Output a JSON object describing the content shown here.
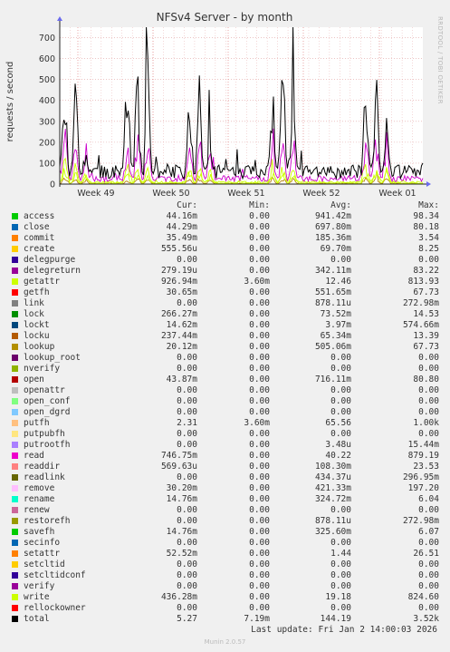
{
  "chart_data": {
    "type": "line",
    "title": "NFSv4 Server - by month",
    "ylabel": "requests / second",
    "ylim": [
      0,
      750
    ],
    "yticks": [
      0,
      100,
      200,
      300,
      400,
      500,
      600,
      700
    ],
    "xticks": [
      "Week 49",
      "Week 50",
      "Week 51",
      "Week 52",
      "Week 01"
    ],
    "grid": true,
    "legend_position": "below",
    "side_label": "RRDTOOL / TOBI OETIKER",
    "series": [
      {
        "name": "total",
        "color": "#000000",
        "peaks": [
          580,
          600,
          200,
          620,
          610,
          660,
          575,
          600,
          300,
          640,
          640,
          540,
          750,
          615,
          580
        ],
        "baseline": 130
      },
      {
        "name": "read",
        "color": "#cc00cc",
        "peaks": [
          310,
          260,
          150,
          250,
          300,
          240,
          250,
          270,
          200,
          240,
          250,
          260,
          320,
          280,
          300
        ],
        "baseline": 60
      },
      {
        "name": "getattr",
        "color": "#ccff00",
        "peaks": [
          140,
          100,
          70,
          120,
          110,
          95,
          100,
          110,
          80,
          100,
          100,
          95,
          120,
          110,
          100
        ],
        "baseline": 20
      },
      {
        "name": "write",
        "color": "#ccff00",
        "peaks": [
          100,
          70,
          50,
          80,
          70,
          60,
          75,
          80,
          55,
          70,
          80,
          70,
          90,
          80,
          75
        ],
        "baseline": 10
      },
      {
        "name": "lookup",
        "color": "#b8860b",
        "peaks": [
          40,
          35,
          25,
          30,
          35,
          30,
          35,
          40,
          25,
          35,
          40,
          30,
          45,
          40,
          35
        ],
        "baseline": 5
      }
    ]
  },
  "legend": {
    "headers": {
      "cur": "Cur:",
      "min": "Min:",
      "avg": "Avg:",
      "max": "Max:"
    },
    "rows": [
      {
        "name": "access",
        "color": "#00cc00",
        "cur": "44.16m",
        "min": "0.00",
        "avg": "941.42m",
        "max": "98.34"
      },
      {
        "name": "close",
        "color": "#0066b3",
        "cur": "44.29m",
        "min": "0.00",
        "avg": "697.80m",
        "max": "80.18"
      },
      {
        "name": "commit",
        "color": "#ff8000",
        "cur": "35.49m",
        "min": "0.00",
        "avg": "185.36m",
        "max": "3.54"
      },
      {
        "name": "create",
        "color": "#ffcc00",
        "cur": "555.56u",
        "min": "0.00",
        "avg": "69.70m",
        "max": "8.25"
      },
      {
        "name": "delegpurge",
        "color": "#330099",
        "cur": "0.00",
        "min": "0.00",
        "avg": "0.00",
        "max": "0.00"
      },
      {
        "name": "delegreturn",
        "color": "#990099",
        "cur": "279.19u",
        "min": "0.00",
        "avg": "342.11m",
        "max": "83.22"
      },
      {
        "name": "getattr",
        "color": "#ccff00",
        "cur": "926.94m",
        "min": "3.60m",
        "avg": "12.46",
        "max": "813.93"
      },
      {
        "name": "getfh",
        "color": "#ff0000",
        "cur": "30.65m",
        "min": "0.00",
        "avg": "551.65m",
        "max": "67.73"
      },
      {
        "name": "link",
        "color": "#808080",
        "cur": "0.00",
        "min": "0.00",
        "avg": "878.11u",
        "max": "272.98m"
      },
      {
        "name": "lock",
        "color": "#008f00",
        "cur": "266.27m",
        "min": "0.00",
        "avg": "73.52m",
        "max": "14.53"
      },
      {
        "name": "lockt",
        "color": "#00487d",
        "cur": "14.62m",
        "min": "0.00",
        "avg": "3.97m",
        "max": "574.66m"
      },
      {
        "name": "locku",
        "color": "#b35a00",
        "cur": "237.44m",
        "min": "0.00",
        "avg": "65.34m",
        "max": "13.39"
      },
      {
        "name": "lookup",
        "color": "#b38f00",
        "cur": "20.12m",
        "min": "0.00",
        "avg": "505.06m",
        "max": "67.73"
      },
      {
        "name": "lookup_root",
        "color": "#6b006b",
        "cur": "0.00",
        "min": "0.00",
        "avg": "0.00",
        "max": "0.00"
      },
      {
        "name": "nverify",
        "color": "#8fb300",
        "cur": "0.00",
        "min": "0.00",
        "avg": "0.00",
        "max": "0.00"
      },
      {
        "name": "open",
        "color": "#b30000",
        "cur": "43.87m",
        "min": "0.00",
        "avg": "716.11m",
        "max": "80.80"
      },
      {
        "name": "openattr",
        "color": "#bebebe",
        "cur": "0.00",
        "min": "0.00",
        "avg": "0.00",
        "max": "0.00"
      },
      {
        "name": "open_conf",
        "color": "#80ff80",
        "cur": "0.00",
        "min": "0.00",
        "avg": "0.00",
        "max": "0.00"
      },
      {
        "name": "open_dgrd",
        "color": "#80c9ff",
        "cur": "0.00",
        "min": "0.00",
        "avg": "0.00",
        "max": "0.00"
      },
      {
        "name": "putfh",
        "color": "#ffc080",
        "cur": "2.31",
        "min": "3.60m",
        "avg": "65.56",
        "max": "1.00k"
      },
      {
        "name": "putpubfh",
        "color": "#ffe680",
        "cur": "0.00",
        "min": "0.00",
        "avg": "0.00",
        "max": "0.00"
      },
      {
        "name": "putrootfh",
        "color": "#aa80ff",
        "cur": "0.00",
        "min": "0.00",
        "avg": "3.48u",
        "max": "15.44m"
      },
      {
        "name": "read",
        "color": "#ee00cc",
        "cur": "746.75m",
        "min": "0.00",
        "avg": "40.22",
        "max": "879.19"
      },
      {
        "name": "readdir",
        "color": "#ff8080",
        "cur": "569.63u",
        "min": "0.00",
        "avg": "108.30m",
        "max": "23.53"
      },
      {
        "name": "readlink",
        "color": "#666600",
        "cur": "0.00",
        "min": "0.00",
        "avg": "434.37u",
        "max": "296.95m"
      },
      {
        "name": "remove",
        "color": "#ffbfff",
        "cur": "30.20m",
        "min": "0.00",
        "avg": "421.33m",
        "max": "197.20"
      },
      {
        "name": "rename",
        "color": "#00ffcc",
        "cur": "14.76m",
        "min": "0.00",
        "avg": "324.72m",
        "max": "6.04"
      },
      {
        "name": "renew",
        "color": "#cc6699",
        "cur": "0.00",
        "min": "0.00",
        "avg": "0.00",
        "max": "0.00"
      },
      {
        "name": "restorefh",
        "color": "#999900",
        "cur": "0.00",
        "min": "0.00",
        "avg": "878.11u",
        "max": "272.98m"
      },
      {
        "name": "savefh",
        "color": "#00cc00",
        "cur": "14.76m",
        "min": "0.00",
        "avg": "325.60m",
        "max": "6.07"
      },
      {
        "name": "secinfo",
        "color": "#0066b3",
        "cur": "0.00",
        "min": "0.00",
        "avg": "0.00",
        "max": "0.00"
      },
      {
        "name": "setattr",
        "color": "#ff8000",
        "cur": "52.52m",
        "min": "0.00",
        "avg": "1.44",
        "max": "26.51"
      },
      {
        "name": "setcltid",
        "color": "#ffcc00",
        "cur": "0.00",
        "min": "0.00",
        "avg": "0.00",
        "max": "0.00"
      },
      {
        "name": "setcltidconf",
        "color": "#330099",
        "cur": "0.00",
        "min": "0.00",
        "avg": "0.00",
        "max": "0.00"
      },
      {
        "name": "verify",
        "color": "#990099",
        "cur": "0.00",
        "min": "0.00",
        "avg": "0.00",
        "max": "0.00"
      },
      {
        "name": "write",
        "color": "#ccff00",
        "cur": "436.28m",
        "min": "0.00",
        "avg": "19.18",
        "max": "824.60"
      },
      {
        "name": "rellockowner",
        "color": "#ff0000",
        "cur": "0.00",
        "min": "0.00",
        "avg": "0.00",
        "max": "0.00"
      },
      {
        "name": "total",
        "color": "#000000",
        "cur": "5.27",
        "min": "7.19m",
        "avg": "144.19",
        "max": "3.52k"
      }
    ]
  },
  "footer": {
    "last_update": "Last update: Fri Jan  2 14:00:03 2026",
    "version": "Munin 2.0.57"
  }
}
